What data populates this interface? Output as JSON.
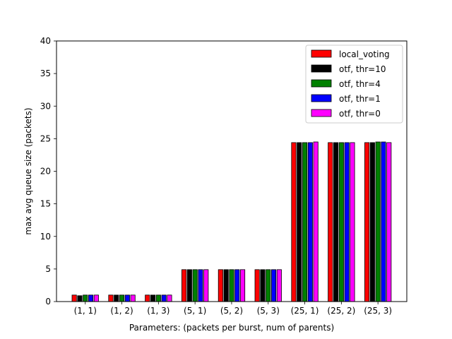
{
  "chart_data": {
    "type": "bar",
    "title": "",
    "xlabel": "Parameters: (packets per burst, num of parents)",
    "ylabel": "max avg queue size (packets)",
    "categories": [
      "(1, 1)",
      "(1, 2)",
      "(1, 3)",
      "(5, 1)",
      "(5, 2)",
      "(5, 3)",
      "(25, 1)",
      "(25, 2)",
      "(25, 3)"
    ],
    "ylim": [
      0,
      40
    ],
    "yticks": [
      0,
      5,
      10,
      15,
      20,
      25,
      30,
      35,
      40
    ],
    "grid": false,
    "legend_position": "top-right",
    "series": [
      {
        "name": "local_voting",
        "color": "#ff0000",
        "values": [
          1.0,
          1.0,
          1.0,
          4.9,
          4.9,
          4.9,
          24.4,
          24.4,
          24.4
        ]
      },
      {
        "name": "otf, thr=10",
        "color": "#000000",
        "values": [
          0.9,
          1.0,
          1.0,
          4.9,
          4.9,
          4.9,
          24.4,
          24.4,
          24.4
        ]
      },
      {
        "name": "otf, thr=4",
        "color": "#008000",
        "values": [
          1.0,
          1.0,
          1.0,
          4.9,
          4.9,
          4.9,
          24.4,
          24.4,
          24.5
        ]
      },
      {
        "name": "otf, thr=1",
        "color": "#0000ff",
        "values": [
          1.0,
          1.0,
          1.0,
          4.9,
          4.9,
          4.9,
          24.4,
          24.4,
          24.5
        ]
      },
      {
        "name": "otf, thr=0",
        "color": "#ff00ff",
        "values": [
          1.0,
          1.0,
          1.0,
          4.9,
          4.9,
          4.9,
          24.5,
          24.4,
          24.4
        ]
      }
    ]
  }
}
